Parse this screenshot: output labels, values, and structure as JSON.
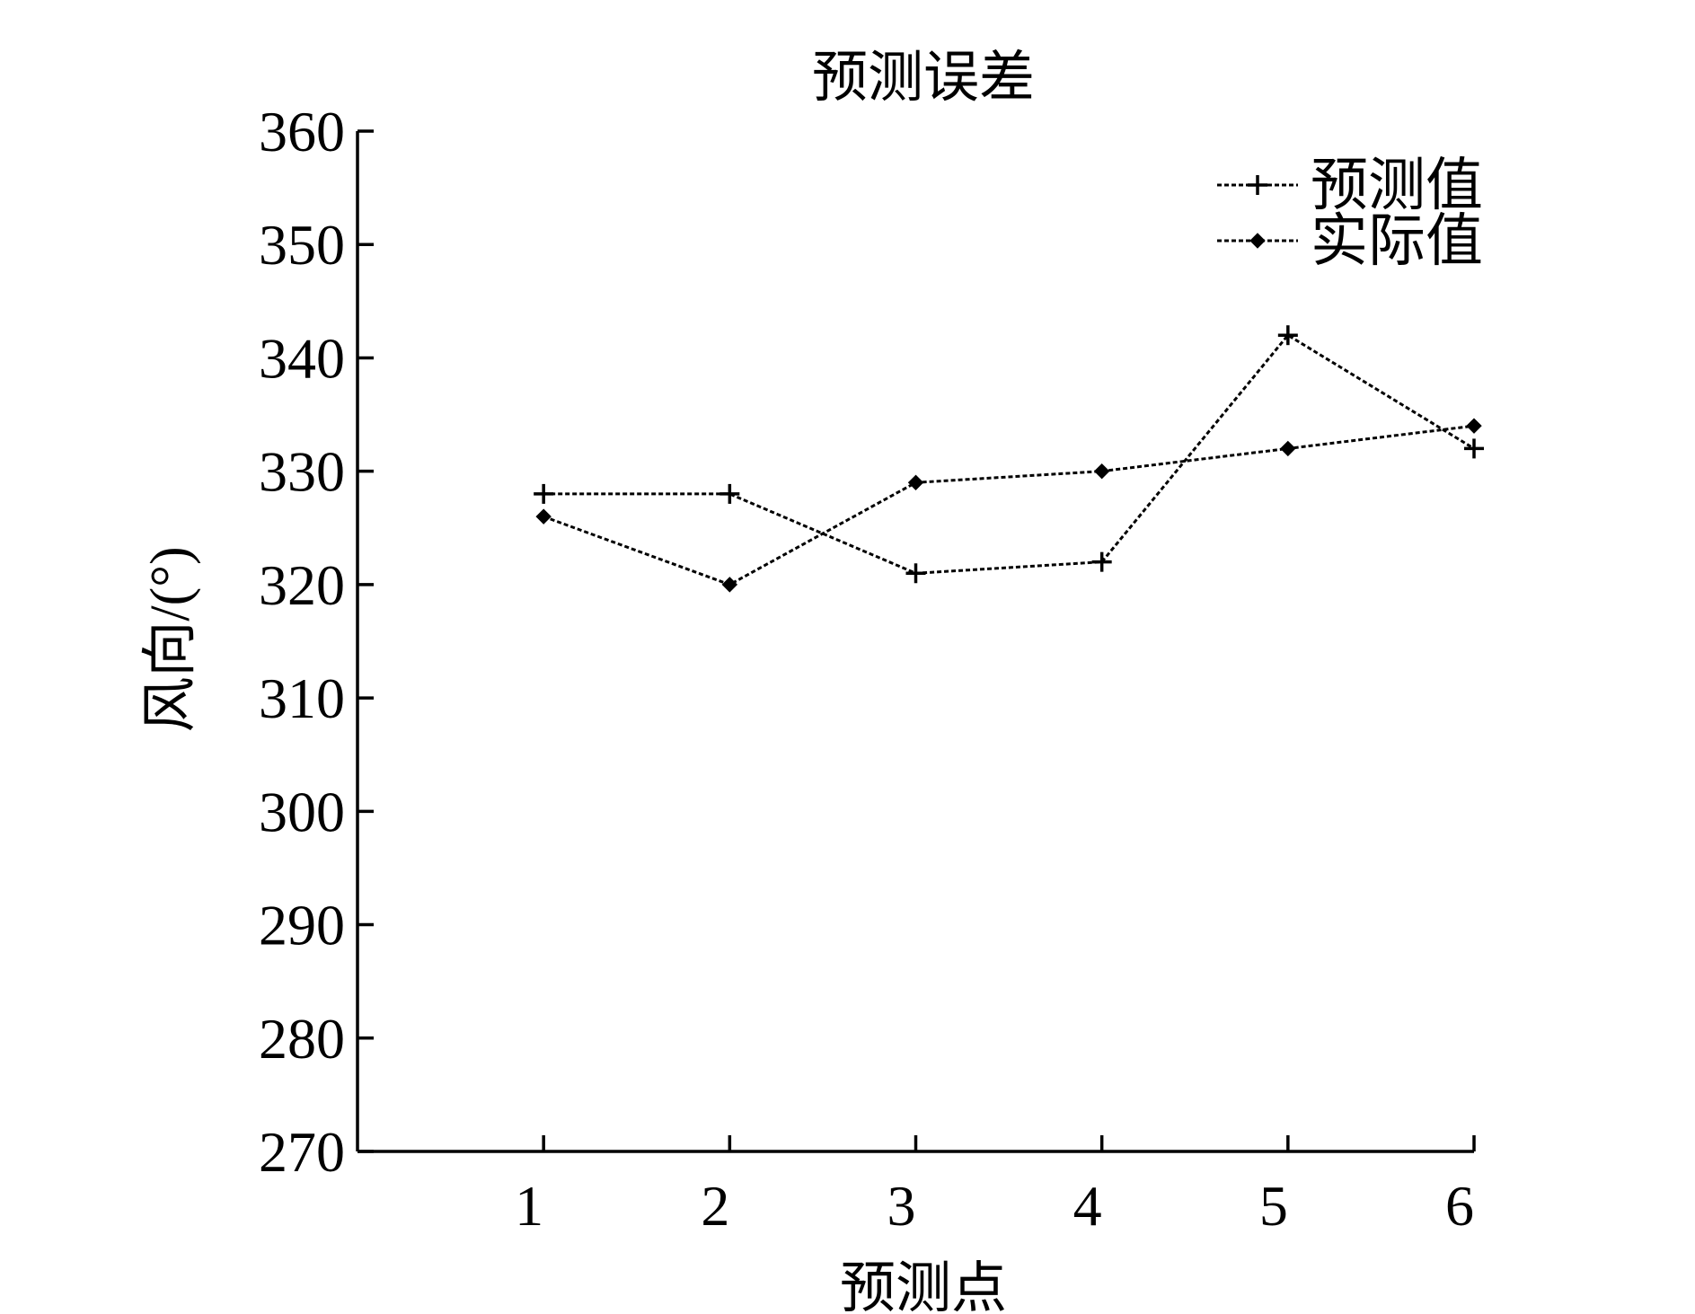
{
  "chart_data": {
    "type": "line",
    "title": "预测误差",
    "xlabel": "预测点",
    "ylabel": "风向/(°)",
    "x": [
      1,
      2,
      3,
      4,
      5,
      6
    ],
    "xticks": [
      "1",
      "2",
      "3",
      "4",
      "5",
      "6"
    ],
    "xlim": [
      0,
      6
    ],
    "ylim": [
      270,
      360
    ],
    "yticks": [
      "270",
      "280",
      "290",
      "300",
      "310",
      "320",
      "330",
      "340",
      "350",
      "360"
    ],
    "grid": false,
    "legend_position": "top-right",
    "series": [
      {
        "name": "预测值",
        "marker": "plus",
        "values": [
          328,
          328,
          321,
          322,
          342,
          332
        ]
      },
      {
        "name": "实际值",
        "marker": "diamond",
        "values": [
          326,
          320,
          329,
          330,
          332,
          334
        ]
      }
    ]
  }
}
